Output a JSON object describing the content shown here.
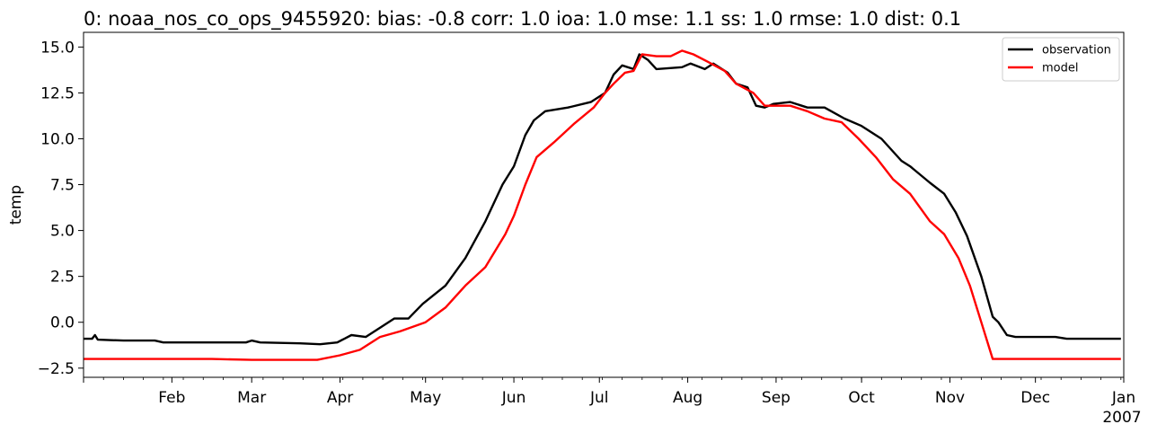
{
  "chart_data": {
    "type": "line",
    "title": "0: noaa_nos_co_ops_9455920: bias: -0.8  corr: 1.0  ioa: 1.0  mse: 1.1  ss: 1.0  rmse: 1.0  dist: 0.1",
    "ylabel": "temp",
    "xlabel": "",
    "xlim": [
      "2006-01-01",
      "2007-01-01"
    ],
    "ylim": [
      -3.0,
      15.8
    ],
    "yticks": [
      -2.5,
      0.0,
      2.5,
      5.0,
      7.5,
      10.0,
      12.5,
      15.0
    ],
    "ytick_labels": [
      "−2.5",
      "0.0",
      "2.5",
      "5.0",
      "7.5",
      "10.0",
      "12.5",
      "15.0"
    ],
    "xticks": [
      "2006-02-01",
      "2006-03-01",
      "2006-04-01",
      "2006-05-01",
      "2006-06-01",
      "2006-07-01",
      "2006-08-01",
      "2006-09-01",
      "2006-10-01",
      "2006-11-01",
      "2006-12-01",
      "2007-01-01"
    ],
    "xtick_labels": [
      "Feb",
      "Mar",
      "Apr",
      "May",
      "Jun",
      "Jul",
      "Aug",
      "Sep",
      "Oct",
      "Nov",
      "Dec",
      "Jan"
    ],
    "xtick_sublabel": "2007",
    "legend_position": "top-right",
    "grid": false,
    "series": [
      {
        "name": "observation",
        "color": "#000000",
        "points": [
          [
            "2006-01-01",
            -0.9
          ],
          [
            "2006-01-04",
            -0.9
          ],
          [
            "2006-01-05",
            -0.7
          ],
          [
            "2006-01-06",
            -0.95
          ],
          [
            "2006-01-15",
            -1.0
          ],
          [
            "2006-01-26",
            -1.0
          ],
          [
            "2006-01-29",
            -1.1
          ],
          [
            "2006-02-15",
            -1.1
          ],
          [
            "2006-02-27",
            -1.1
          ],
          [
            "2006-03-01",
            -1.0
          ],
          [
            "2006-03-04",
            -1.1
          ],
          [
            "2006-03-18",
            -1.15
          ],
          [
            "2006-03-25",
            -1.2
          ],
          [
            "2006-03-31",
            -1.1
          ],
          [
            "2006-04-05",
            -0.7
          ],
          [
            "2006-04-10",
            -0.8
          ],
          [
            "2006-04-15",
            -0.3
          ],
          [
            "2006-04-20",
            0.2
          ],
          [
            "2006-04-25",
            0.2
          ],
          [
            "2006-04-30",
            1.0
          ],
          [
            "2006-05-08",
            2.0
          ],
          [
            "2006-05-15",
            3.5
          ],
          [
            "2006-05-22",
            5.5
          ],
          [
            "2006-05-28",
            7.5
          ],
          [
            "2006-06-01",
            8.5
          ],
          [
            "2006-06-05",
            10.2
          ],
          [
            "2006-06-08",
            11.0
          ],
          [
            "2006-06-12",
            11.5
          ],
          [
            "2006-06-20",
            11.7
          ],
          [
            "2006-06-28",
            12.0
          ],
          [
            "2006-07-03",
            12.5
          ],
          [
            "2006-07-06",
            13.5
          ],
          [
            "2006-07-09",
            14.0
          ],
          [
            "2006-07-13",
            13.8
          ],
          [
            "2006-07-15",
            14.6
          ],
          [
            "2006-07-18",
            14.3
          ],
          [
            "2006-07-21",
            13.8
          ],
          [
            "2006-07-30",
            13.9
          ],
          [
            "2006-08-02",
            14.1
          ],
          [
            "2006-08-07",
            13.8
          ],
          [
            "2006-08-10",
            14.1
          ],
          [
            "2006-08-15",
            13.6
          ],
          [
            "2006-08-18",
            13.0
          ],
          [
            "2006-08-22",
            12.8
          ],
          [
            "2006-08-25",
            11.8
          ],
          [
            "2006-08-28",
            11.7
          ],
          [
            "2006-08-31",
            11.9
          ],
          [
            "2006-09-06",
            12.0
          ],
          [
            "2006-09-12",
            11.7
          ],
          [
            "2006-09-18",
            11.7
          ],
          [
            "2006-09-25",
            11.1
          ],
          [
            "2006-10-01",
            10.7
          ],
          [
            "2006-10-08",
            10.0
          ],
          [
            "2006-10-15",
            8.8
          ],
          [
            "2006-10-18",
            8.5
          ],
          [
            "2006-10-25",
            7.6
          ],
          [
            "2006-10-30",
            7.0
          ],
          [
            "2006-11-03",
            6.0
          ],
          [
            "2006-11-07",
            4.7
          ],
          [
            "2006-11-12",
            2.5
          ],
          [
            "2006-11-16",
            0.3
          ],
          [
            "2006-11-18",
            0.0
          ],
          [
            "2006-11-21",
            -0.7
          ],
          [
            "2006-11-24",
            -0.8
          ],
          [
            "2006-12-08",
            -0.8
          ],
          [
            "2006-12-12",
            -0.9
          ],
          [
            "2006-12-31",
            -0.9
          ]
        ]
      },
      {
        "name": "model",
        "color": "#ff0000",
        "points": [
          [
            "2006-01-01",
            -2.0
          ],
          [
            "2006-01-29",
            -2.0
          ],
          [
            "2006-02-15",
            -2.0
          ],
          [
            "2006-03-01",
            -2.05
          ],
          [
            "2006-03-15",
            -2.05
          ],
          [
            "2006-03-24",
            -2.05
          ],
          [
            "2006-04-01",
            -1.8
          ],
          [
            "2006-04-08",
            -1.5
          ],
          [
            "2006-04-15",
            -0.8
          ],
          [
            "2006-04-22",
            -0.5
          ],
          [
            "2006-05-01",
            0.0
          ],
          [
            "2006-05-08",
            0.8
          ],
          [
            "2006-05-15",
            2.0
          ],
          [
            "2006-05-22",
            3.0
          ],
          [
            "2006-05-29",
            4.8
          ],
          [
            "2006-06-01",
            5.8
          ],
          [
            "2006-06-05",
            7.5
          ],
          [
            "2006-06-09",
            9.0
          ],
          [
            "2006-06-15",
            9.8
          ],
          [
            "2006-06-22",
            10.8
          ],
          [
            "2006-06-29",
            11.7
          ],
          [
            "2006-07-03",
            12.5
          ],
          [
            "2006-07-06",
            13.0
          ],
          [
            "2006-07-10",
            13.6
          ],
          [
            "2006-07-13",
            13.7
          ],
          [
            "2006-07-16",
            14.6
          ],
          [
            "2006-07-21",
            14.5
          ],
          [
            "2006-07-26",
            14.5
          ],
          [
            "2006-07-30",
            14.8
          ],
          [
            "2006-08-03",
            14.6
          ],
          [
            "2006-08-08",
            14.2
          ],
          [
            "2006-08-14",
            13.7
          ],
          [
            "2006-08-18",
            13.0
          ],
          [
            "2006-08-24",
            12.5
          ],
          [
            "2006-08-28",
            11.8
          ],
          [
            "2006-09-06",
            11.8
          ],
          [
            "2006-09-12",
            11.5
          ],
          [
            "2006-09-18",
            11.1
          ],
          [
            "2006-09-24",
            10.9
          ],
          [
            "2006-09-30",
            10.0
          ],
          [
            "2006-10-06",
            9.0
          ],
          [
            "2006-10-12",
            7.8
          ],
          [
            "2006-10-18",
            7.0
          ],
          [
            "2006-10-25",
            5.5
          ],
          [
            "2006-10-30",
            4.8
          ],
          [
            "2006-11-04",
            3.5
          ],
          [
            "2006-11-08",
            2.0
          ],
          [
            "2006-11-12",
            0.0
          ],
          [
            "2006-11-16",
            -2.0
          ],
          [
            "2006-11-22",
            -2.0
          ],
          [
            "2006-12-15",
            -2.0
          ],
          [
            "2006-12-31",
            -2.0
          ]
        ]
      }
    ]
  }
}
